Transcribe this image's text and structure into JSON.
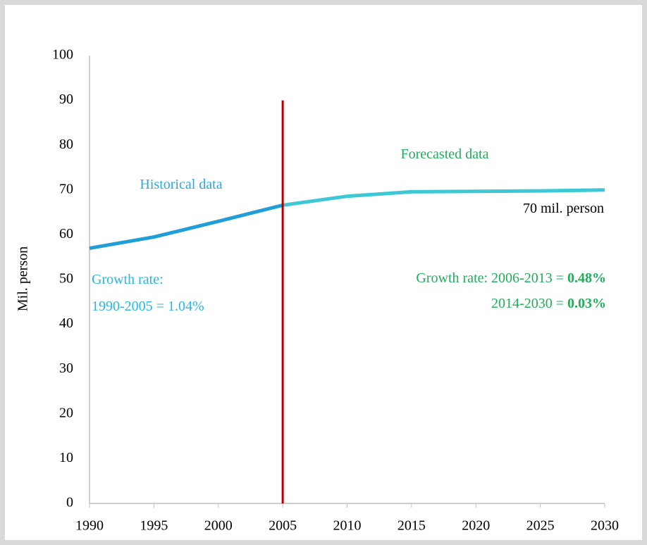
{
  "chart_data": {
    "type": "line",
    "y_label": "Mil. person",
    "x": [
      1990,
      1995,
      2000,
      2005,
      2010,
      2015,
      2020,
      2025,
      2030
    ],
    "series": [
      {
        "name": "Historical data",
        "color": "#1f9ed8",
        "values": [
          57,
          59.5,
          63,
          66.6,
          null,
          null,
          null,
          null,
          null
        ]
      },
      {
        "name": "Forecasted data",
        "color": "#3cc8d4",
        "values": [
          null,
          null,
          null,
          66.6,
          68.6,
          69.6,
          69.7,
          69.8,
          70
        ]
      }
    ],
    "xlim": [
      1990,
      2030
    ],
    "xticks": [
      1990,
      1995,
      2000,
      2005,
      2010,
      2015,
      2020,
      2025,
      2030
    ],
    "ylim": [
      0,
      100
    ],
    "yticks": [
      0,
      10,
      20,
      30,
      40,
      50,
      60,
      70,
      80,
      90,
      100
    ],
    "grid": false,
    "vline": {
      "x": 2005,
      "ymax": 90,
      "color": "#b20000"
    },
    "annotations": [
      {
        "color": "#29a9d9",
        "lines": [
          {
            "text": "Historical data"
          }
        ]
      },
      {
        "color": "#1fae5a",
        "lines": [
          {
            "text": "Forecasted data"
          }
        ]
      },
      {
        "color": "#000000",
        "lines": [
          {
            "text": "70 mil. person"
          }
        ]
      },
      {
        "color": "#29b6e0",
        "lines": [
          {
            "text": "Growth rate:"
          },
          {
            "text": "1990-2005 = 1.04%"
          }
        ]
      },
      {
        "color": "#1fae5a",
        "lines": [
          {
            "text": "Growth rate: 2006-2013 = ",
            "bold": "0.48%"
          },
          {
            "text": "2014-2030 = ",
            "bold": "0.03%"
          }
        ]
      }
    ]
  }
}
